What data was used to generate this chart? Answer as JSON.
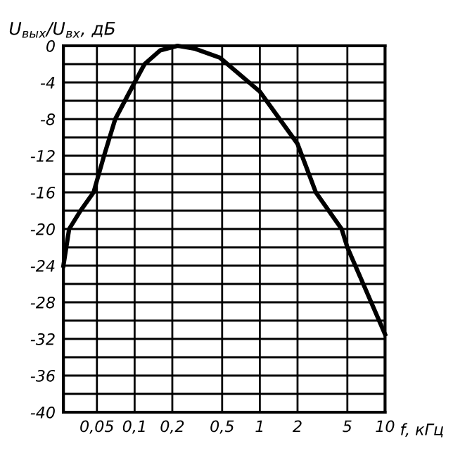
{
  "chart_data": {
    "type": "line",
    "xlabel": "f, кГц",
    "ylabel": "U$_{вых}$/U$_{вх}$, дБ",
    "log": "x",
    "x": [
      0.027,
      0.03,
      0.037,
      0.047,
      0.057,
      0.07,
      0.1,
      0.12,
      0.16,
      0.22,
      0.3,
      0.48,
      1,
      2,
      2.8,
      4.5,
      5,
      10
    ],
    "series": [
      {
        "color": "#000000",
        "values": [
          -24,
          -20,
          -18,
          -16,
          -12,
          -8,
          -4,
          -2,
          -0.5,
          0,
          -0.3,
          -1.3,
          -5,
          -10.7,
          -16,
          -20,
          -22,
          -31.5
        ]
      }
    ],
    "xlim": [
      0.027,
      10
    ],
    "xticks": [
      {
        "value": 0.05,
        "label": "0,05"
      },
      {
        "value": 0.1,
        "label": "0,1"
      },
      {
        "value": 0.2,
        "label": "0,2"
      },
      {
        "value": 0.5,
        "label": "0,5"
      },
      1,
      2,
      5,
      10
    ],
    "ylim": [
      -40,
      0
    ],
    "yticks": [
      0,
      {
        "value": -2,
        "label": null
      },
      -4,
      {
        "value": -6,
        "label": null
      },
      -8,
      {
        "value": -10,
        "label": null
      },
      -12,
      {
        "value": -14,
        "label": null
      },
      -16,
      {
        "value": -18,
        "label": null
      },
      -20,
      {
        "value": -22,
        "label": null
      },
      -24,
      {
        "value": -26,
        "label": null
      },
      -28,
      {
        "value": -30,
        "label": null
      },
      -32,
      {
        "value": -34,
        "label": null
      },
      -36,
      {
        "value": -38,
        "label": null
      },
      -40
    ],
    "grid": true,
    "marker": "none",
    "line_style": "solid"
  }
}
